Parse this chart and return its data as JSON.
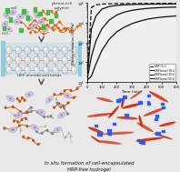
{
  "xlabel": "Time (sec)",
  "ylabel": "Elastic modulus (G', Pa)",
  "xlim": [
    0,
    600
  ],
  "ylim_log": [
    10,
    100000
  ],
  "time_points": [
    0,
    30,
    60,
    100,
    150,
    200,
    250,
    300,
    350,
    400,
    450,
    500,
    550,
    600
  ],
  "series": [
    {
      "label": "HRP (1 s)",
      "style": "dashed",
      "color": "#111111",
      "values": [
        12,
        60000,
        82000,
        90000,
        93000,
        94500,
        95000,
        95500,
        96000,
        96200,
        96400,
        96500,
        96600,
        96700
      ]
    },
    {
      "label": "HRP-bead (10 s)",
      "style": "solid",
      "color": "#111111",
      "values": [
        12,
        5000,
        22000,
        50000,
        68000,
        77000,
        82000,
        85000,
        87000,
        88500,
        89500,
        90000,
        90500,
        91000
      ]
    },
    {
      "label": "HRP-bead (30 s)",
      "style": "solid",
      "color": "#111111",
      "values": [
        12,
        200,
        1200,
        5000,
        14000,
        25000,
        35000,
        43000,
        49000,
        54000,
        57000,
        60000,
        62000,
        63500
      ]
    },
    {
      "label": "HRP-bead (60 s)",
      "style": "solid",
      "color": "#111111",
      "values": [
        12,
        20,
        80,
        400,
        1500,
        3500,
        6000,
        9000,
        12000,
        15000,
        17500,
        19500,
        21000,
        22500
      ]
    }
  ],
  "bg_color": "#e8e8e8",
  "caption": "In situ formation of cell-encapsulated\nHRP-free hydrogel",
  "label_cell": "cell",
  "label_polymer": "phenol-rich\npolymer",
  "label_h2o2": "H₂O₂",
  "label_beads": "HRP-immobilized beads"
}
